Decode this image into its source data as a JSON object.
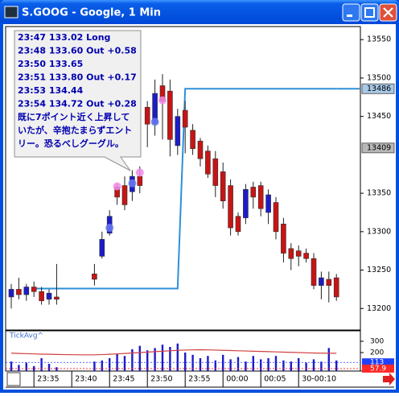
{
  "chart_data": {
    "type": "candlestick",
    "title": "S.GOOG - Google, 1 Min",
    "categories": [
      null,
      null,
      null,
      "23:35",
      null,
      null,
      null,
      null,
      "23:40",
      null,
      null,
      null,
      null,
      "23:45",
      null,
      null,
      null,
      null,
      "23:50",
      null,
      null,
      null,
      null,
      "23:55",
      null,
      null,
      null,
      null,
      "00:00",
      null,
      null,
      null,
      null,
      "00:05",
      null,
      null,
      null,
      null,
      "30-00:10",
      null,
      null,
      null,
      null,
      null
    ],
    "open": [
      13215,
      13225,
      13218,
      13228,
      13222,
      13212,
      13215,
      null,
      null,
      null,
      null,
      13245,
      13268,
      13298,
      13358,
      13360,
      13352,
      13372,
      13462,
      13440,
      13490,
      13483,
      13412,
      13458,
      13432,
      13418,
      13405,
      13395,
      13378,
      13360,
      13320,
      13318,
      13358,
      13360,
      13325,
      13338,
      13310,
      13278,
      13275,
      13272,
      13265,
      13230,
      13238,
      13240
    ],
    "high": [
      13232,
      13240,
      13232,
      13235,
      13228,
      13225,
      13258,
      null,
      null,
      null,
      null,
      13258,
      13300,
      13328,
      13362,
      13372,
      13380,
      13385,
      13470,
      13498,
      13505,
      13498,
      13460,
      13470,
      13440,
      13422,
      13412,
      13405,
      13390,
      13368,
      13325,
      13362,
      13365,
      13365,
      13355,
      13345,
      13318,
      13285,
      13282,
      13278,
      13272,
      13248,
      13248,
      13245
    ],
    "low": [
      13200,
      13212,
      13210,
      13215,
      13205,
      13205,
      13205,
      null,
      null,
      null,
      null,
      13230,
      13265,
      13295,
      13335,
      13328,
      13340,
      13350,
      13410,
      13425,
      13420,
      13398,
      13400,
      13402,
      13400,
      13385,
      13370,
      13345,
      13330,
      13295,
      13295,
      13310,
      13330,
      13320,
      13310,
      13290,
      13260,
      13250,
      13255,
      13260,
      13225,
      13212,
      13208,
      13210
    ],
    "close": [
      13225,
      13218,
      13228,
      13222,
      13210,
      13220,
      13212,
      null,
      null,
      null,
      null,
      13238,
      13290,
      13320,
      13345,
      13335,
      13372,
      13360,
      13440,
      13480,
      13470,
      13420,
      13450,
      13436,
      13408,
      13395,
      13375,
      13360,
      13340,
      13305,
      13300,
      13355,
      13345,
      13330,
      13348,
      13300,
      13272,
      13265,
      13268,
      13265,
      13230,
      13240,
      13230,
      13215
    ],
    "up_color": "#1c1cc8",
    "down_color": "#c81414",
    "ylim": [
      13172,
      13567
    ],
    "yticks": [
      13550,
      13500,
      13450,
      13350,
      13300,
      13250,
      13200
    ],
    "highlight_labels": [
      {
        "value": 13486,
        "color": "#a8c8e8"
      },
      {
        "value": 13409,
        "color": "#b8b8b8"
      }
    ],
    "step_line": {
      "color": "#2e8fd8",
      "values": [
        null,
        null,
        null,
        13226,
        13226,
        13226,
        13226,
        13226,
        13226,
        13226,
        13226,
        13226,
        13226,
        13226,
        13226,
        13226,
        13226,
        13226,
        13226,
        13226,
        13226,
        13226,
        13226,
        13486,
        13486,
        13486,
        13486,
        13486,
        13486,
        13486,
        13486,
        13486,
        13486,
        13486,
        13486,
        13486,
        13486,
        13486,
        13486,
        13486,
        13486,
        13486,
        13486,
        13486
      ]
    },
    "markers": [
      {
        "color": "#6a7cf0",
        "values": [
          null,
          null,
          null,
          null,
          null,
          null,
          null,
          null,
          null,
          null,
          null,
          null,
          null,
          13305,
          null,
          null,
          13363,
          null,
          null,
          13443,
          null,
          null,
          null,
          null,
          null,
          null,
          null,
          null,
          null,
          null,
          null,
          null,
          null,
          null,
          null,
          null,
          null,
          null,
          null,
          null,
          null,
          null,
          null,
          null
        ]
      },
      {
        "color": "#f08ce8",
        "values": [
          null,
          null,
          null,
          null,
          null,
          null,
          null,
          null,
          null,
          null,
          null,
          null,
          null,
          null,
          13359,
          null,
          null,
          13377,
          null,
          null,
          13471,
          null,
          null,
          null,
          null,
          null,
          null,
          null,
          null,
          null,
          null,
          null,
          null,
          null,
          null,
          null,
          null,
          null,
          null,
          null,
          null,
          null,
          null,
          null
        ]
      }
    ],
    "annotation": {
      "lines": [
        "23:47 133.02 Long",
        "23:48 133.60 Out +0.58",
        "23:50 133.65",
        "23:51 133.80 Out +0.17",
        "23:53 134.44",
        "23:54 134.72 Out +0.28",
        "既に7ポイント近く上昇して",
        "いたが、辛抱たまらずエント",
        "リー。恐るべしグーグル。"
      ]
    },
    "indicator": {
      "name": "TickAvg^",
      "ylim": [
        36,
        393
      ],
      "yticks": [
        300,
        200
      ],
      "highlight_labels": [
        {
          "value": 113,
          "color": "#2040ff"
        },
        {
          "value": 57.9,
          "color": "#ff2828"
        }
      ],
      "bars": {
        "color": "#1c1cc8",
        "values": [
          120,
          90,
          110,
          80,
          150,
          100,
          70,
          null,
          null,
          null,
          null,
          120,
          130,
          150,
          190,
          170,
          230,
          260,
          220,
          240,
          270,
          250,
          280,
          200,
          180,
          150,
          170,
          130,
          180,
          140,
          160,
          120,
          170,
          140,
          150,
          170,
          130,
          120,
          150,
          110,
          140,
          120,
          240,
          130
        ]
      },
      "line": {
        "color": "#d04040",
        "values": [
          195,
          192,
          190,
          188,
          186,
          185,
          183,
          182,
          181,
          180,
          180,
          180,
          182,
          185,
          188,
          192,
          196,
          200,
          204,
          208,
          212,
          216,
          220,
          222,
          224,
          225,
          224,
          222,
          220,
          218,
          216,
          214,
          212,
          210,
          208,
          206,
          204,
          202,
          200,
          198,
          196,
          195,
          194,
          194
        ]
      }
    }
  }
}
